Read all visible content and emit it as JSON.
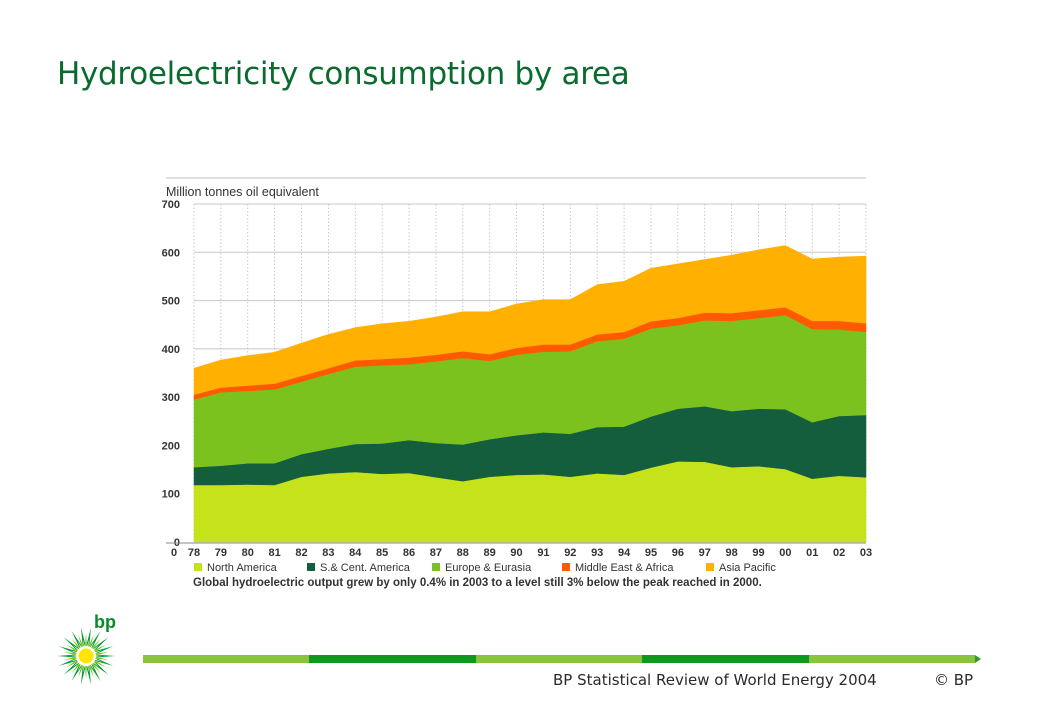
{
  "slide": {
    "title": "Hydroelectricity consumption by area",
    "footer_text": "BP Statistical Review of World Energy 2004",
    "copyright": "© BP",
    "logo_text": "bp"
  },
  "colors": {
    "title": "#0a6b2e",
    "north_america": "#c6e21a",
    "sc_america": "#145e3e",
    "europe_eurasia": "#7cc21f",
    "middle_east_africa": "#ff5a00",
    "asia_pacific": "#ffb000",
    "footer_segments": [
      "#8ac43a",
      "#0c9a1c",
      "#8ac43a",
      "#0c9a1c",
      "#8ac43a"
    ]
  },
  "chart_data": {
    "type": "area",
    "stacked": true,
    "ylabel": "Million tonnes oil equivalent",
    "ylim": [
      0,
      700
    ],
    "yticks": [
      0,
      100,
      200,
      300,
      400,
      500,
      600,
      700
    ],
    "grid": true,
    "legend_position": "bottom",
    "x": [
      "78",
      "79",
      "80",
      "81",
      "82",
      "83",
      "84",
      "85",
      "86",
      "87",
      "88",
      "89",
      "90",
      "91",
      "92",
      "93",
      "94",
      "95",
      "96",
      "97",
      "98",
      "99",
      "00",
      "01",
      "02",
      "03"
    ],
    "series": [
      {
        "name": "North America",
        "color": "#c6e21a",
        "values": [
          118,
          118,
          119,
          118,
          135,
          142,
          145,
          141,
          143,
          134,
          126,
          135,
          139,
          140,
          135,
          142,
          139,
          154,
          167,
          166,
          155,
          157,
          151,
          131,
          137,
          134
        ]
      },
      {
        "name": "S.& Cent. America",
        "color": "#145e3e",
        "values": [
          37,
          40,
          44,
          45,
          47,
          51,
          58,
          63,
          68,
          71,
          76,
          78,
          82,
          87,
          89,
          96,
          100,
          106,
          109,
          115,
          116,
          119,
          124,
          117,
          124,
          129
        ]
      },
      {
        "name": "Europe & Eurasia",
        "color": "#7cc21f",
        "values": [
          140,
          152,
          150,
          153,
          150,
          155,
          160,
          162,
          157,
          169,
          179,
          162,
          167,
          167,
          171,
          178,
          182,
          182,
          173,
          178,
          187,
          188,
          195,
          193,
          179,
          172
        ]
      },
      {
        "name": "Middle East & Africa",
        "color": "#ff5a00",
        "values": [
          10,
          10,
          11,
          12,
          12,
          12,
          13,
          13,
          14,
          14,
          14,
          14,
          14,
          15,
          14,
          14,
          14,
          15,
          15,
          16,
          16,
          16,
          16,
          17,
          18,
          18
        ]
      },
      {
        "name": "Asia Pacific",
        "color": "#ffb000",
        "values": [
          55,
          57,
          62,
          65,
          68,
          70,
          68,
          73,
          75,
          78,
          82,
          88,
          91,
          93,
          93,
          103,
          105,
          110,
          112,
          110,
          120,
          125,
          128,
          128,
          132,
          139
        ]
      }
    ],
    "caption": "Global hydroelectric output grew by only 0.4% in 2003 to a level still 3% below the peak reached in 2000."
  }
}
